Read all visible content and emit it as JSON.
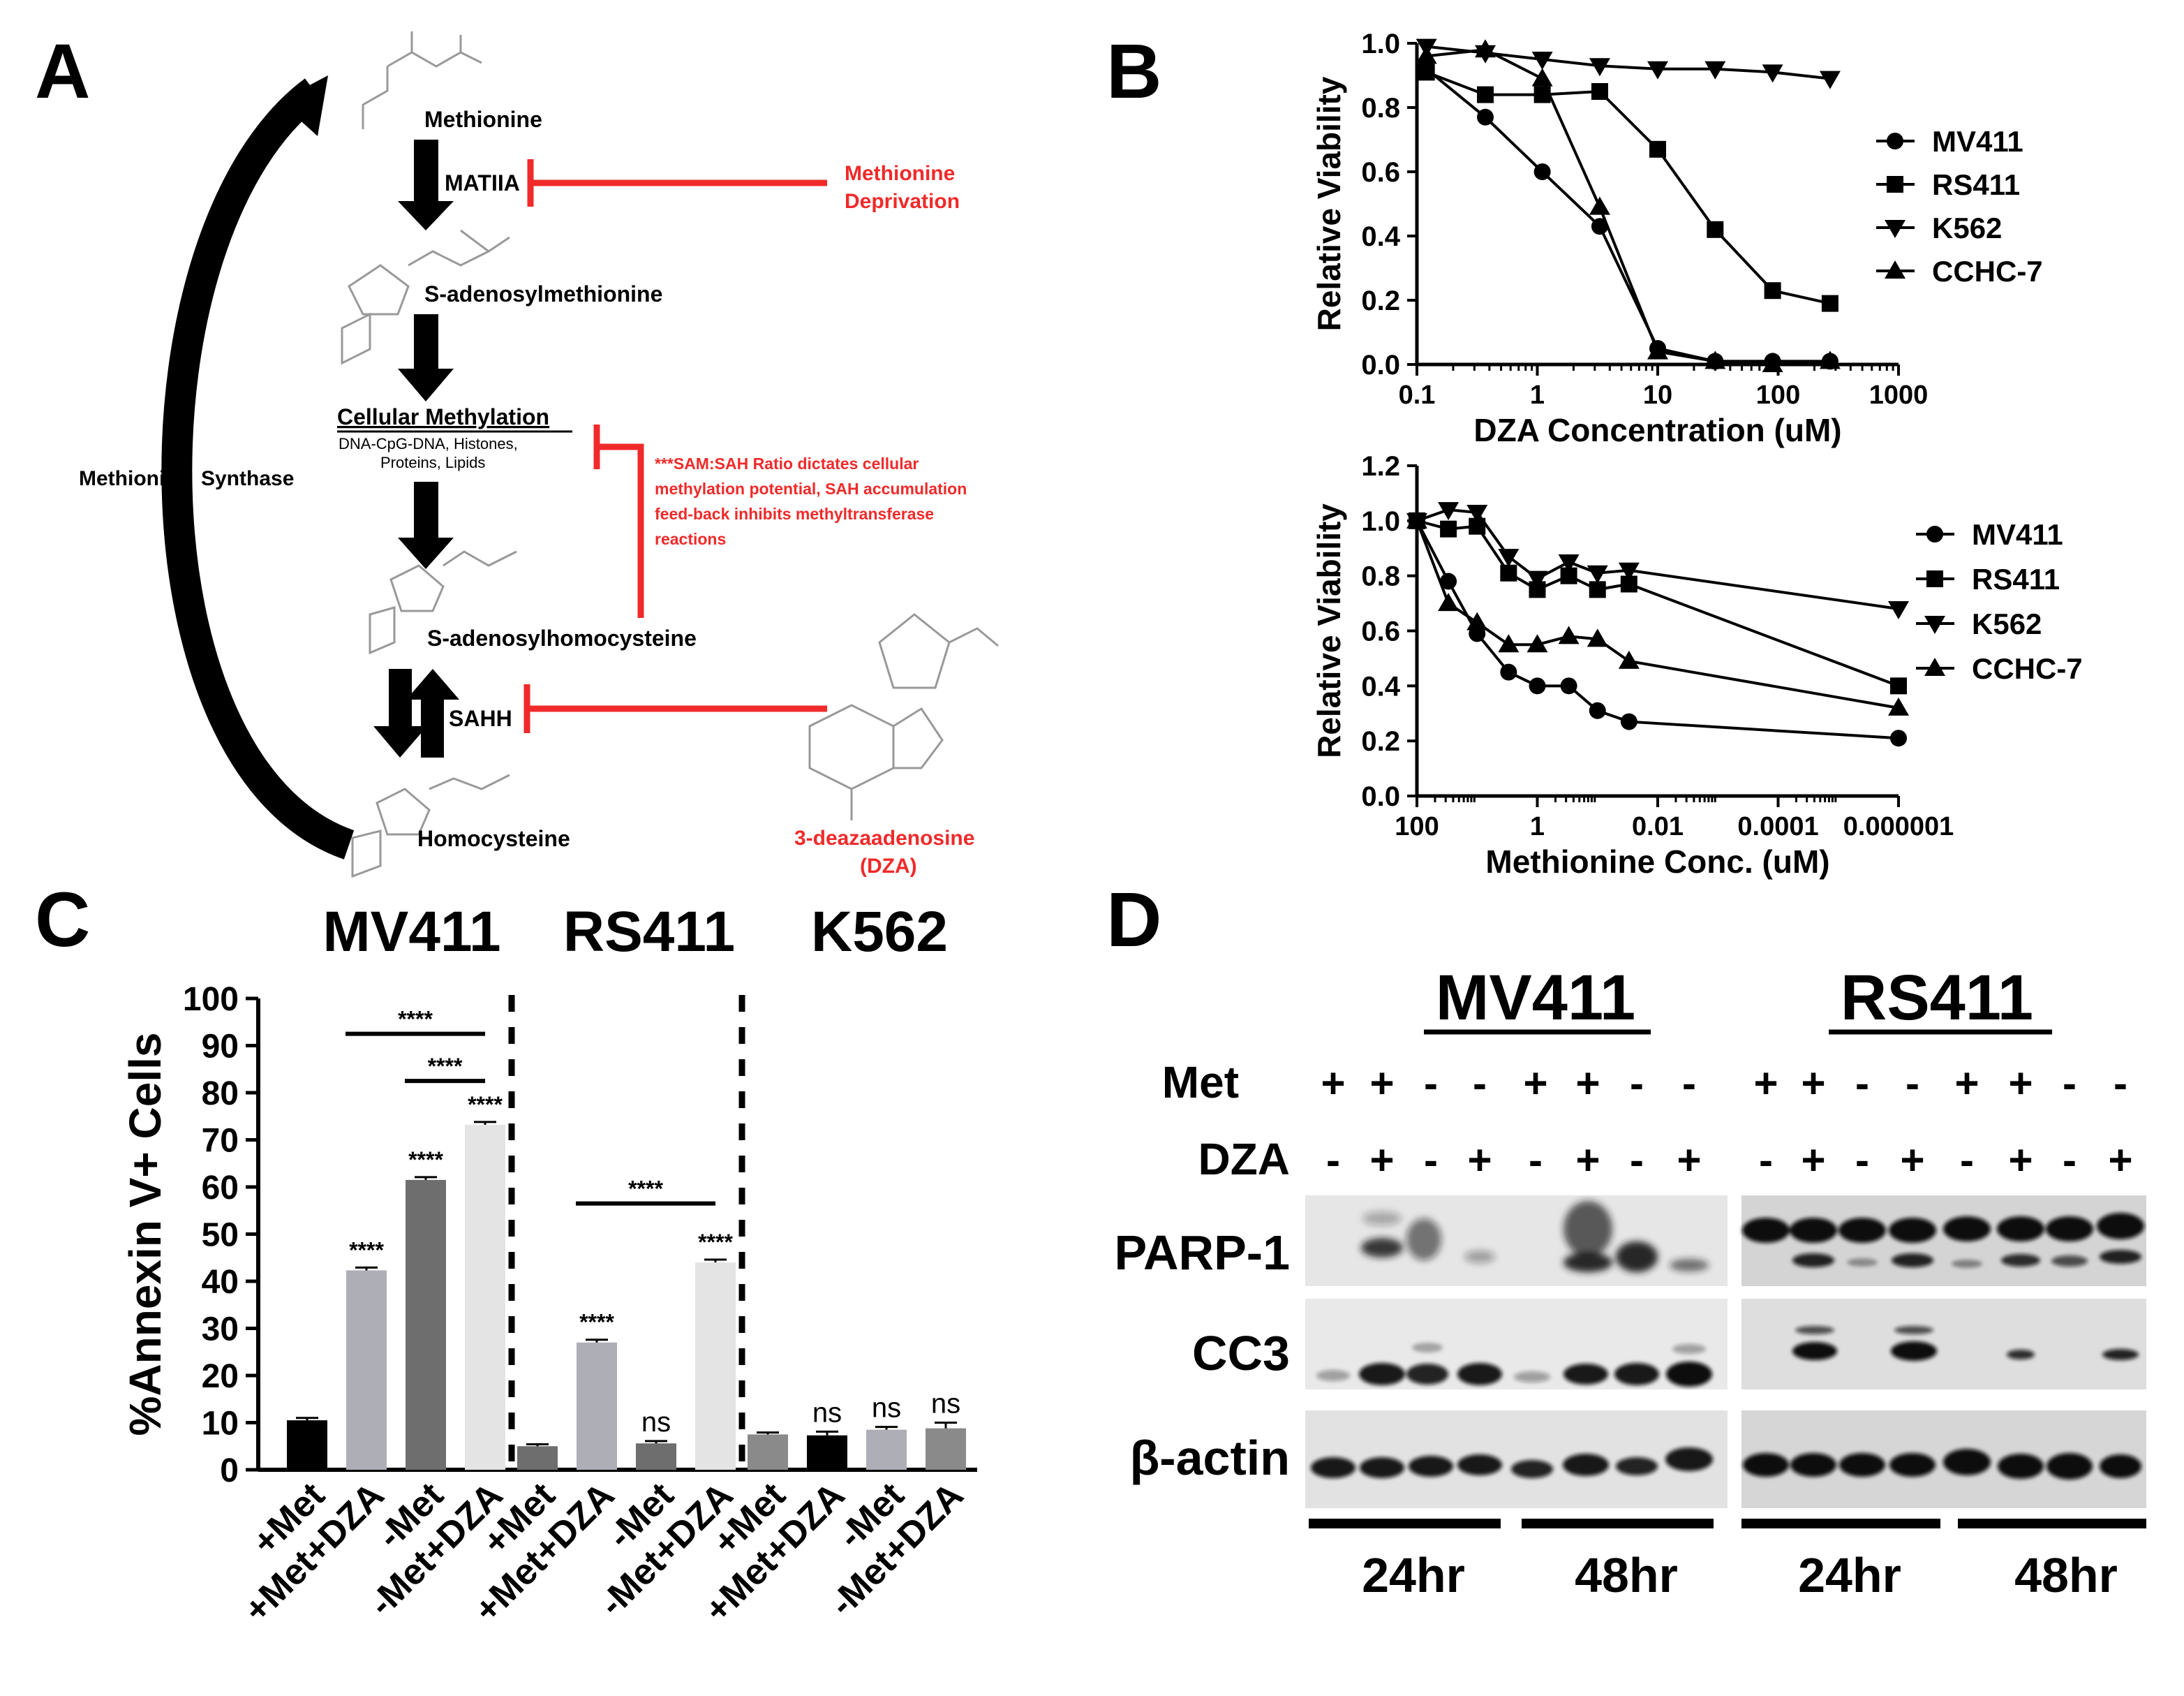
{
  "panel_labels": {
    "a": "A",
    "b": "B",
    "c": "C",
    "d": "D"
  },
  "colors": {
    "red": "#f02a2a",
    "black": "#000000",
    "gray_dark": "#6e6e6e",
    "gray_mid": "#8a8a8a",
    "gray_light": "#aeaeb6",
    "gray_pale": "#e4e4e4"
  },
  "pathway": {
    "methionine": "Methionine",
    "matiia": "MATIIA",
    "met_dep_1": "Methionine",
    "met_dep_2": "Deprivation",
    "sam": "S-adenosylmethionine",
    "cell_meth": "Cellular Methylation",
    "cell_meth_sub_1": "DNA-CpG-DNA, Histones,",
    "cell_meth_sub_2": "Proteins, Lipids",
    "ratio_note_1": "***SAM:SAH Ratio dictates cellular",
    "ratio_note_2": "methylation potential, SAH accumulation",
    "ratio_note_3": "feed-back inhibits methyltransferase",
    "ratio_note_4": "reactions",
    "sah": "S-adenosylhomocysteine",
    "sahh": "SAHH",
    "homocysteine": "Homocysteine",
    "synthase": "Methionine  Synthase",
    "dza_1": "3-deazaadenosine",
    "dza_2": "(DZA)"
  },
  "chart_data": [
    {
      "id": "B-top",
      "type": "line",
      "xscale": "log10",
      "xlabel": "DZA Concentration (uM)",
      "ylabel": "Relative Viability",
      "xlim": [
        0.1,
        1000
      ],
      "ylim": [
        0.0,
        1.0
      ],
      "x_ticks": [
        "0.1",
        "1",
        "10",
        "100",
        "1000"
      ],
      "y_ticks": [
        "0.0",
        "0.2",
        "0.4",
        "0.6",
        "0.8",
        "1.0"
      ],
      "x": [
        0.12,
        0.37,
        1.1,
        3.3,
        10,
        30,
        90,
        270
      ],
      "series": [
        {
          "name": "MV411",
          "marker": "circle",
          "values": [
            0.92,
            0.77,
            0.6,
            0.43,
            0.05,
            0.01,
            0.01,
            0.01
          ]
        },
        {
          "name": "RS411",
          "marker": "square",
          "values": [
            0.91,
            0.84,
            0.84,
            0.85,
            0.67,
            0.42,
            0.23,
            0.19
          ]
        },
        {
          "name": "K562",
          "marker": "tri-down",
          "values": [
            0.99,
            0.97,
            0.95,
            0.93,
            0.92,
            0.92,
            0.91,
            0.89
          ]
        },
        {
          "name": "CCHC-7",
          "marker": "tri-up",
          "values": [
            0.96,
            0.98,
            0.89,
            0.49,
            0.04,
            0.01,
            0.0,
            0.01
          ]
        }
      ]
    },
    {
      "id": "B-bottom",
      "type": "line",
      "xscale": "log10-reversed",
      "xlabel": "Methionine Conc. (uM)",
      "ylabel": "Relative Viability",
      "xlim": [
        100,
        1e-06
      ],
      "ylim": [
        0.0,
        1.2
      ],
      "x_ticks": [
        "100",
        "1",
        "0.01",
        "0.0001",
        "0.000001"
      ],
      "y_ticks": [
        "0.0",
        "0.2",
        "0.4",
        "0.6",
        "0.8",
        "1.0",
        "1.2"
      ],
      "x": [
        100,
        30,
        10,
        3,
        1,
        0.3,
        0.1,
        0.03,
        1e-06
      ],
      "series": [
        {
          "name": "MV411",
          "marker": "circle",
          "values": [
            1.0,
            0.78,
            0.59,
            0.45,
            0.4,
            0.4,
            0.31,
            0.27,
            0.21
          ]
        },
        {
          "name": "RS411",
          "marker": "square",
          "values": [
            1.0,
            0.97,
            0.98,
            0.81,
            0.75,
            0.8,
            0.75,
            0.77,
            0.4
          ]
        },
        {
          "name": "K562",
          "marker": "tri-down",
          "values": [
            1.0,
            1.04,
            1.03,
            0.87,
            0.79,
            0.85,
            0.81,
            0.82,
            0.68
          ]
        },
        {
          "name": "CCHC-7",
          "marker": "tri-up",
          "values": [
            1.0,
            0.7,
            0.63,
            0.55,
            0.55,
            0.58,
            0.57,
            0.49,
            0.32
          ]
        }
      ]
    },
    {
      "id": "C",
      "type": "bar",
      "ylabel": "%Annexin V+ Cells",
      "ylim": [
        0,
        100
      ],
      "y_ticks": [
        "0",
        "10",
        "20",
        "30",
        "40",
        "50",
        "60",
        "70",
        "80",
        "90",
        "100"
      ],
      "groups": [
        "MV411",
        "RS411",
        "K562"
      ],
      "categories": [
        "+Met",
        "+Met+DZA",
        "-Met",
        "-Met+DZA",
        "+Met",
        "+Met+DZA",
        "-Met",
        "-Met+DZA",
        "+Met",
        "+Met+DZA",
        "-Met",
        "-Met+DZA"
      ],
      "values": [
        10.5,
        42.3,
        61.5,
        73.2,
        5.0,
        27.0,
        5.6,
        44.0,
        7.5,
        7.3,
        8.5,
        8.8
      ],
      "errors": [
        0.5,
        0.6,
        0.6,
        0.6,
        0.4,
        0.6,
        0.5,
        0.6,
        0.4,
        0.8,
        0.6,
        1.2
      ],
      "fills": [
        "black",
        "gray_light",
        "gray_dark",
        "gray_pale",
        "gray_dark",
        "gray_light",
        "gray_dark",
        "gray_pale",
        "gray_mid",
        "black",
        "gray_light",
        "gray_mid"
      ],
      "annotations": [
        "",
        "****",
        "****",
        "****",
        "",
        "****",
        "ns",
        "****",
        "",
        "ns",
        "ns",
        "ns"
      ],
      "comparisons": [
        {
          "label": "****",
          "from": 1,
          "to": 3,
          "y": 92.5
        },
        {
          "label": "****",
          "from": 2,
          "to": 3,
          "y": 82.5
        },
        {
          "label": "****",
          "from": 5,
          "to": 7,
          "y": 56.5
        }
      ]
    }
  ],
  "blot": {
    "cell_lines": [
      "MV411",
      "RS411"
    ],
    "met_label": "Met",
    "dza_label": "DZA",
    "met_signs": [
      "+",
      "+",
      "-",
      "-",
      "+",
      "+",
      "-",
      "-"
    ],
    "dza_signs": [
      "-",
      "+",
      "-",
      "+",
      "-",
      "+",
      "-",
      "+"
    ],
    "rows": [
      "PARP-1",
      "CC3",
      "β-actin"
    ],
    "times": [
      "24hr",
      "48hr",
      "24hr",
      "48hr"
    ]
  }
}
